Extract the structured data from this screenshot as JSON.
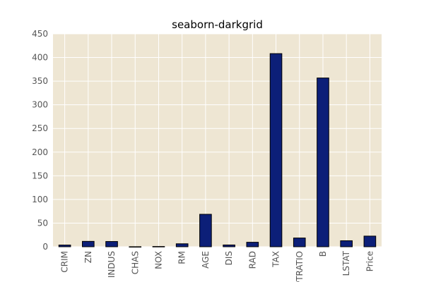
{
  "chart_data": {
    "type": "bar",
    "title": "seaborn-darkgrid",
    "xlabel": "",
    "ylabel": "",
    "categories": [
      "CRIM",
      "ZN",
      "INDUS",
      "CHAS",
      "NOX",
      "RM",
      "AGE",
      "DIS",
      "RAD",
      "TAX",
      "PTRATIO",
      "B",
      "LSTAT",
      "Price"
    ],
    "values": [
      3.6,
      11.4,
      11.1,
      0.07,
      0.55,
      6.3,
      68.6,
      3.8,
      9.5,
      408.2,
      18.5,
      356.7,
      12.7,
      22.5
    ],
    "ylim": [
      0,
      450
    ],
    "yticks": [
      "0",
      "50",
      "100",
      "150",
      "200",
      "250",
      "300",
      "350",
      "400",
      "450"
    ],
    "grid": true,
    "legend": "none",
    "colors": {
      "plot_background": "#eee6d3",
      "grid": "#ffffff",
      "bar_fill": "#0c1f78",
      "bar_edge": "#000000",
      "tick_label": "#555555",
      "title": "#000000"
    }
  }
}
